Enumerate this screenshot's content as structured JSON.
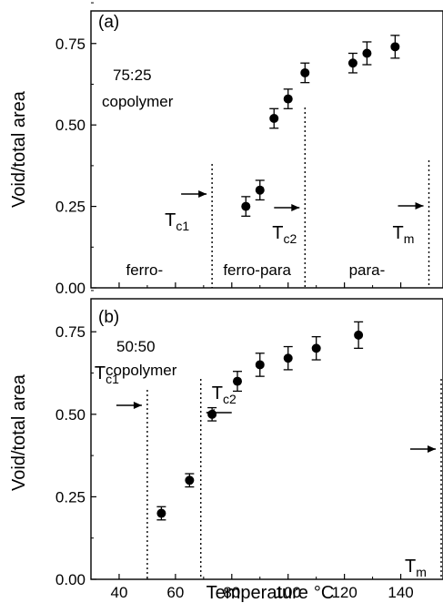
{
  "chart_data": [
    {
      "type": "scatter",
      "panel_label": "(a)",
      "annotation": [
        "75:25",
        "copolymer"
      ],
      "xlim": [
        30,
        155
      ],
      "ylim": [
        0,
        0.85
      ],
      "yticks": [
        "0.00",
        "0.25",
        "0.50",
        "0.75"
      ],
      "ylabel": "Void/total area",
      "series": [
        {
          "x": [
            85,
            90,
            95,
            100,
            106,
            123,
            128,
            138
          ],
          "y": [
            0.25,
            0.3,
            0.52,
            0.58,
            0.66,
            0.69,
            0.72,
            0.74
          ],
          "err": [
            0.03,
            0.03,
            0.03,
            0.03,
            0.03,
            0.03,
            0.035,
            0.035
          ]
        }
      ],
      "vlines": [
        {
          "x": 73,
          "label": "T",
          "sub": "c1",
          "arrow": "right"
        },
        {
          "x": 106,
          "label": "T",
          "sub": "c2",
          "arrow": "right"
        },
        {
          "x": 150,
          "label": "T",
          "sub": "m",
          "arrow": "right"
        }
      ],
      "regions": [
        {
          "text": "ferro-",
          "x": 49
        },
        {
          "text": "ferro-para",
          "x": 89
        },
        {
          "text": "para-",
          "x": 128
        }
      ]
    },
    {
      "type": "scatter",
      "panel_label": "(b)",
      "annotation": [
        "50:50",
        "copolymer"
      ],
      "xlim": [
        30,
        155
      ],
      "ylim": [
        0,
        0.85
      ],
      "yticks": [
        "0.00",
        "0.25",
        "0.50",
        "0.75"
      ],
      "ylabel": "Void/total area",
      "xticks": [
        "40",
        "60",
        "80",
        "100",
        "120",
        "140"
      ],
      "xlabel": "Temperature",
      "xlabel_unit": "°C",
      "series": [
        {
          "x": [
            55,
            65,
            73,
            82,
            90,
            100,
            110,
            125
          ],
          "y": [
            0.2,
            0.3,
            0.5,
            0.6,
            0.65,
            0.67,
            0.7,
            0.74
          ],
          "err": [
            0.02,
            0.02,
            0.02,
            0.03,
            0.035,
            0.035,
            0.035,
            0.04
          ]
        }
      ],
      "vlines": [
        {
          "x": 50,
          "label": "T",
          "sub": "c1",
          "arrow": "right"
        },
        {
          "x": 69,
          "label": "T",
          "sub": "c2",
          "arrow": "left"
        },
        {
          "x": 155,
          "label": "T",
          "sub": "m",
          "arrow": "right"
        }
      ]
    }
  ]
}
